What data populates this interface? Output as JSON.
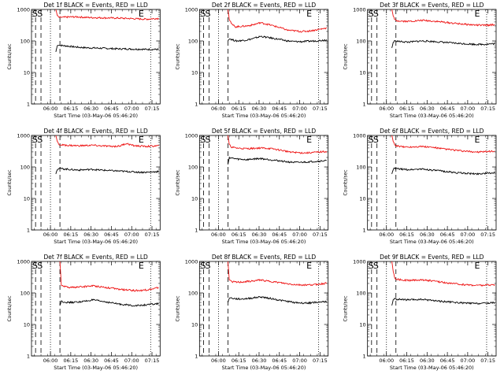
{
  "figure_title": "",
  "chart_data": [
    {
      "type": "line",
      "title": "Det 1f BLACK = Events, RED = LLD",
      "xlabel": "Start Time (03-May-06 05:46:20)",
      "ylabel": "Counts/sec",
      "yscale": "log",
      "ylim": [
        1,
        1000
      ],
      "yticks": [
        "1",
        "10",
        "100",
        "1000"
      ],
      "xlim_minutes": [
        0,
        95
      ],
      "xticks": [
        "06:00",
        "06:15",
        "06:30",
        "06:45",
        "07:00",
        "07:15"
      ],
      "marker_labels": [
        "S",
        "S",
        "E"
      ],
      "series": [
        {
          "name": "Events",
          "color": "#000000",
          "x_minutes": [
            18,
            19,
            20,
            22,
            25,
            30,
            35,
            40,
            45,
            50,
            55,
            60,
            65,
            70,
            75,
            80,
            85,
            90,
            94
          ],
          "values": [
            45,
            70,
            75,
            72,
            70,
            66,
            63,
            61,
            60,
            59,
            58,
            57,
            56,
            56,
            55,
            55,
            54,
            54,
            54
          ]
        },
        {
          "name": "LLD",
          "color": "#ee1111",
          "x_minutes": [
            18,
            19,
            20,
            22,
            25,
            30,
            35,
            40,
            45,
            50,
            55,
            60,
            65,
            70,
            75,
            80,
            85,
            90,
            94
          ],
          "values": [
            1000,
            650,
            560,
            560,
            570,
            580,
            580,
            560,
            550,
            545,
            540,
            535,
            530,
            520,
            510,
            500,
            490,
            510,
            520
          ]
        }
      ]
    },
    {
      "type": "line",
      "title": "Det 2f BLACK = Events, RED = LLD",
      "xlabel": "Start Time (03-May-06 05:46:20)",
      "ylabel": "Counts/sec",
      "yscale": "log",
      "ylim": [
        1,
        1000
      ],
      "yticks": [
        "1",
        "10",
        "100",
        "1000"
      ],
      "xlim_minutes": [
        0,
        95
      ],
      "xticks": [
        "06:00",
        "06:15",
        "06:30",
        "06:45",
        "07:00",
        "07:15"
      ],
      "marker_labels": [
        "S",
        "S",
        "E"
      ],
      "series": [
        {
          "name": "Events",
          "color": "#000000",
          "x_minutes": [
            21,
            22,
            24,
            27,
            30,
            35,
            40,
            45,
            50,
            55,
            60,
            65,
            70,
            75,
            80,
            85,
            90,
            94
          ],
          "values": [
            100,
            120,
            110,
            100,
            102,
            108,
            120,
            140,
            130,
            120,
            110,
            100,
            96,
            95,
            98,
            100,
            104,
            110
          ]
        },
        {
          "name": "LLD",
          "color": "#ee1111",
          "x_minutes": [
            21,
            22,
            24,
            27,
            30,
            35,
            40,
            45,
            50,
            55,
            60,
            65,
            70,
            75,
            80,
            85,
            90,
            94
          ],
          "values": [
            1000,
            500,
            330,
            280,
            290,
            300,
            330,
            380,
            340,
            300,
            260,
            220,
            210,
            200,
            205,
            220,
            240,
            260
          ]
        }
      ]
    },
    {
      "type": "line",
      "title": "Det 3f BLACK = Events, RED = LLD",
      "xlabel": "Start Time (03-May-06 05:46:20)",
      "ylabel": "Counts/sec",
      "yscale": "log",
      "ylim": [
        1,
        1000
      ],
      "yticks": [
        "1",
        "10",
        "100",
        "1000"
      ],
      "xlim_minutes": [
        0,
        95
      ],
      "xticks": [
        "06:00",
        "06:15",
        "06:30",
        "06:45",
        "07:00",
        "07:15"
      ],
      "marker_labels": [
        "S",
        "S",
        "E"
      ],
      "series": [
        {
          "name": "Events",
          "color": "#000000",
          "x_minutes": [
            18,
            19,
            20,
            22,
            25,
            30,
            35,
            40,
            45,
            50,
            55,
            60,
            65,
            70,
            75,
            80,
            85,
            90,
            94
          ],
          "values": [
            60,
            90,
            100,
            98,
            95,
            92,
            96,
            100,
            98,
            95,
            92,
            88,
            85,
            82,
            80,
            78,
            78,
            80,
            82
          ]
        },
        {
          "name": "LLD",
          "color": "#ee1111",
          "x_minutes": [
            18,
            19,
            20,
            22,
            25,
            30,
            35,
            40,
            45,
            50,
            55,
            60,
            65,
            70,
            75,
            80,
            85,
            90,
            94
          ],
          "values": [
            1000,
            620,
            470,
            440,
            430,
            420,
            430,
            450,
            440,
            420,
            400,
            380,
            360,
            345,
            330,
            320,
            315,
            320,
            330
          ]
        }
      ]
    },
    {
      "type": "line",
      "title": "Det 4f BLACK = Events, RED = LLD",
      "xlabel": "Start Time (03-May-06 05:46:20)",
      "ylabel": "Counts/sec",
      "yscale": "log",
      "ylim": [
        1,
        1000
      ],
      "yticks": [
        "1",
        "10",
        "100",
        "1000"
      ],
      "xlim_minutes": [
        0,
        95
      ],
      "xticks": [
        "06:00",
        "06:15",
        "06:30",
        "06:45",
        "07:00",
        "07:15"
      ],
      "marker_labels": [
        "S",
        "S",
        "E"
      ],
      "series": [
        {
          "name": "Events",
          "color": "#000000",
          "x_minutes": [
            18,
            19,
            20,
            22,
            25,
            30,
            35,
            40,
            45,
            50,
            55,
            60,
            65,
            70,
            75,
            80,
            85,
            90,
            94
          ],
          "values": [
            60,
            85,
            90,
            88,
            86,
            82,
            80,
            82,
            84,
            80,
            78,
            76,
            74,
            72,
            70,
            68,
            68,
            70,
            72
          ]
        },
        {
          "name": "LLD",
          "color": "#ee1111",
          "x_minutes": [
            18,
            19,
            20,
            22,
            25,
            30,
            35,
            40,
            45,
            50,
            55,
            60,
            65,
            70,
            75,
            80,
            85,
            90,
            94
          ],
          "values": [
            1000,
            650,
            520,
            500,
            490,
            480,
            470,
            480,
            490,
            470,
            460,
            450,
            460,
            560,
            480,
            460,
            450,
            460,
            470
          ]
        }
      ]
    },
    {
      "type": "line",
      "title": "Det 5f BLACK = Events, RED = LLD",
      "xlabel": "Start Time (03-May-06 05:46:20)",
      "ylabel": "Counts/sec",
      "yscale": "log",
      "ylim": [
        1,
        1000
      ],
      "yticks": [
        "1",
        "10",
        "100",
        "1000"
      ],
      "xlim_minutes": [
        0,
        95
      ],
      "xticks": [
        "06:00",
        "06:15",
        "06:30",
        "06:45",
        "07:00",
        "07:15"
      ],
      "marker_labels": [
        "S",
        "S",
        "E"
      ],
      "series": [
        {
          "name": "Events",
          "color": "#000000",
          "x_minutes": [
            21,
            22,
            24,
            27,
            30,
            35,
            40,
            45,
            50,
            55,
            60,
            65,
            70,
            75,
            80,
            85,
            90,
            94
          ],
          "values": [
            120,
            200,
            190,
            180,
            175,
            170,
            180,
            185,
            175,
            165,
            155,
            145,
            140,
            140,
            145,
            150,
            155,
            160
          ]
        },
        {
          "name": "LLD",
          "color": "#ee1111",
          "x_minutes": [
            21,
            22,
            24,
            27,
            30,
            35,
            40,
            45,
            50,
            55,
            60,
            65,
            70,
            75,
            80,
            85,
            90,
            94
          ],
          "values": [
            1000,
            500,
            420,
            400,
            390,
            380,
            390,
            400,
            390,
            370,
            340,
            310,
            290,
            280,
            280,
            290,
            300,
            310
          ]
        }
      ]
    },
    {
      "type": "line",
      "title": "Det 6f BLACK = Events, RED = LLD",
      "xlabel": "Start Time (03-May-06 05:46:20)",
      "ylabel": "Counts/sec",
      "yscale": "log",
      "ylim": [
        1,
        1000
      ],
      "yticks": [
        "1",
        "10",
        "100",
        "1000"
      ],
      "xlim_minutes": [
        0,
        95
      ],
      "xticks": [
        "06:00",
        "06:15",
        "06:30",
        "06:45",
        "07:00",
        "07:15"
      ],
      "marker_labels": [
        "S",
        "S",
        "E"
      ],
      "series": [
        {
          "name": "Events",
          "color": "#000000",
          "x_minutes": [
            18,
            19,
            20,
            22,
            25,
            30,
            35,
            40,
            45,
            50,
            55,
            60,
            65,
            70,
            75,
            80,
            85,
            90,
            94
          ],
          "values": [
            60,
            85,
            90,
            88,
            85,
            82,
            84,
            86,
            82,
            78,
            74,
            70,
            66,
            64,
            62,
            60,
            62,
            64,
            65
          ]
        },
        {
          "name": "LLD",
          "color": "#ee1111",
          "x_minutes": [
            18,
            19,
            20,
            22,
            25,
            30,
            35,
            40,
            45,
            50,
            55,
            60,
            65,
            70,
            75,
            80,
            85,
            90,
            94
          ],
          "values": [
            1000,
            640,
            500,
            460,
            440,
            430,
            440,
            450,
            430,
            410,
            380,
            360,
            340,
            320,
            310,
            300,
            300,
            310,
            320
          ]
        }
      ]
    },
    {
      "type": "line",
      "title": "Det 7f BLACK = Events, RED = LLD",
      "xlabel": "Start Time (03-May-06 05:46:20)",
      "ylabel": "Counts/sec",
      "yscale": "log",
      "ylim": [
        1,
        1000
      ],
      "yticks": [
        "1",
        "10",
        "100",
        "1000"
      ],
      "xlim_minutes": [
        0,
        95
      ],
      "xticks": [
        "06:00",
        "06:15",
        "06:30",
        "06:45",
        "07:00",
        "07:15"
      ],
      "marker_labels": [
        "S",
        "S",
        "E"
      ],
      "series": [
        {
          "name": "Events",
          "color": "#000000",
          "x_minutes": [
            21,
            22,
            24,
            27,
            30,
            35,
            40,
            45,
            50,
            55,
            60,
            65,
            70,
            75,
            80,
            85,
            90,
            94
          ],
          "values": [
            40,
            55,
            52,
            50,
            50,
            52,
            55,
            60,
            56,
            52,
            48,
            44,
            42,
            40,
            40,
            42,
            44,
            46
          ]
        },
        {
          "name": "LLD",
          "color": "#ee1111",
          "x_minutes": [
            21,
            22,
            24,
            27,
            30,
            35,
            40,
            45,
            50,
            55,
            60,
            65,
            70,
            75,
            80,
            85,
            90,
            94
          ],
          "values": [
            1000,
            180,
            160,
            150,
            150,
            155,
            160,
            170,
            160,
            150,
            140,
            130,
            125,
            120,
            120,
            125,
            135,
            150
          ]
        }
      ]
    },
    {
      "type": "line",
      "title": "Det 8f BLACK = Events, RED = LLD",
      "xlabel": "Start Time (03-May-06 05:46:20)",
      "ylabel": "Counts/sec",
      "yscale": "log",
      "ylim": [
        1,
        1000
      ],
      "yticks": [
        "1",
        "10",
        "100",
        "1000"
      ],
      "xlim_minutes": [
        0,
        95
      ],
      "xticks": [
        "06:00",
        "06:15",
        "06:30",
        "06:45",
        "07:00",
        "07:15"
      ],
      "marker_labels": [
        "S",
        "S",
        "E"
      ],
      "series": [
        {
          "name": "Events",
          "color": "#000000",
          "x_minutes": [
            21,
            22,
            24,
            27,
            30,
            35,
            40,
            45,
            50,
            55,
            60,
            65,
            70,
            75,
            80,
            85,
            90,
            94
          ],
          "values": [
            50,
            70,
            68,
            65,
            64,
            66,
            70,
            75,
            70,
            64,
            58,
            54,
            50,
            48,
            48,
            50,
            52,
            54
          ]
        },
        {
          "name": "LLD",
          "color": "#ee1111",
          "x_minutes": [
            21,
            22,
            24,
            27,
            30,
            35,
            40,
            45,
            50,
            55,
            60,
            65,
            70,
            75,
            80,
            85,
            90,
            94
          ],
          "values": [
            1000,
            250,
            230,
            220,
            220,
            230,
            240,
            260,
            240,
            225,
            210,
            195,
            185,
            180,
            180,
            185,
            195,
            205
          ]
        }
      ]
    },
    {
      "type": "line",
      "title": "Det 9f BLACK = Events, RED = LLD",
      "xlabel": "Start Time (03-May-06 05:46:20)",
      "ylabel": "Counts/sec",
      "yscale": "log",
      "ylim": [
        1,
        1000
      ],
      "yticks": [
        "1",
        "10",
        "100",
        "1000"
      ],
      "xlim_minutes": [
        0,
        95
      ],
      "xticks": [
        "06:00",
        "06:15",
        "06:30",
        "06:45",
        "07:00",
        "07:15"
      ],
      "marker_labels": [
        "S",
        "S",
        "E"
      ],
      "series": [
        {
          "name": "Events",
          "color": "#000000",
          "x_minutes": [
            18,
            19,
            20,
            22,
            25,
            30,
            35,
            40,
            45,
            50,
            55,
            60,
            65,
            70,
            75,
            80,
            85,
            90,
            94
          ],
          "values": [
            40,
            60,
            65,
            63,
            62,
            60,
            61,
            62,
            60,
            57,
            54,
            52,
            50,
            48,
            47,
            46,
            47,
            48,
            50
          ]
        },
        {
          "name": "LLD",
          "color": "#ee1111",
          "x_minutes": [
            18,
            19,
            20,
            22,
            25,
            30,
            35,
            40,
            45,
            50,
            55,
            60,
            65,
            70,
            75,
            80,
            85,
            90,
            94
          ],
          "values": [
            1000,
            480,
            300,
            270,
            260,
            250,
            255,
            260,
            250,
            235,
            220,
            205,
            195,
            185,
            180,
            175,
            175,
            180,
            185
          ]
        }
      ]
    }
  ]
}
